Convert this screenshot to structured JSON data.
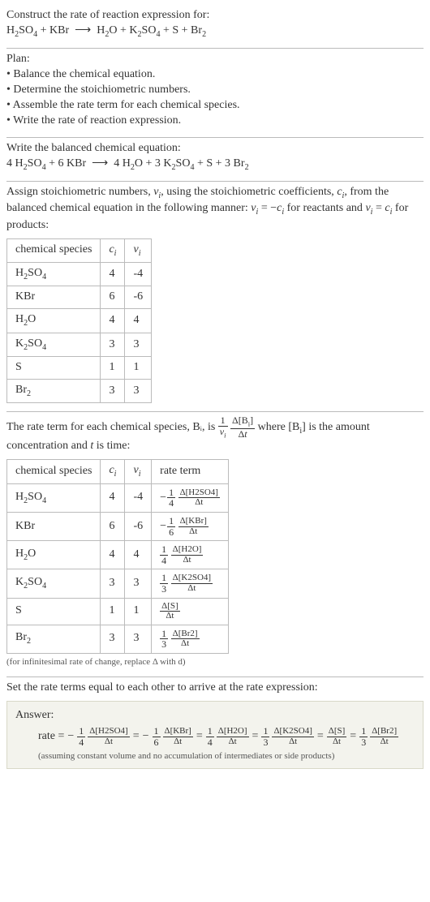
{
  "intro": {
    "line1": "Construct the rate of reaction expression for:",
    "equation": "H₂SO₄ + KBr ⟶ H₂O + K₂SO₄ + S + Br₂"
  },
  "plan": {
    "heading": "Plan:",
    "items": [
      "Balance the chemical equation.",
      "Determine the stoichiometric numbers.",
      "Assemble the rate term for each chemical species.",
      "Write the rate of reaction expression."
    ]
  },
  "balanced": {
    "heading": "Write the balanced chemical equation:",
    "equation": "4 H₂SO₄ + 6 KBr ⟶ 4 H₂O + 3 K₂SO₄ + S + 3 Br₂"
  },
  "assign": {
    "text": "Assign stoichiometric numbers, νᵢ, using the stoichiometric coefficients, cᵢ, from the balanced chemical equation in the following manner: νᵢ = −cᵢ for reactants and νᵢ = cᵢ for products:",
    "table": {
      "headers": [
        "chemical species",
        "cᵢ",
        "νᵢ"
      ],
      "rows": [
        {
          "species": "H₂SO₄",
          "c": "4",
          "v": "-4"
        },
        {
          "species": "KBr",
          "c": "6",
          "v": "-6"
        },
        {
          "species": "H₂O",
          "c": "4",
          "v": "4"
        },
        {
          "species": "K₂SO₄",
          "c": "3",
          "v": "3"
        },
        {
          "species": "S",
          "c": "1",
          "v": "1"
        },
        {
          "species": "Br₂",
          "c": "3",
          "v": "3"
        }
      ]
    }
  },
  "rateterm": {
    "pre": "The rate term for each chemical species, Bᵢ, is ",
    "post": " where [Bᵢ] is the amount concentration and t is time:",
    "coef_num": "1",
    "coef_den": "νᵢ",
    "frac_num": "Δ[Bᵢ]",
    "frac_den": "Δt",
    "table": {
      "headers": [
        "chemical species",
        "cᵢ",
        "νᵢ",
        "rate term"
      ],
      "rows": [
        {
          "species": "H₂SO₄",
          "c": "4",
          "v": "-4",
          "neg": true,
          "coef_num": "1",
          "coef_den": "4",
          "num": "Δ[H2SO4]",
          "den": "Δt"
        },
        {
          "species": "KBr",
          "c": "6",
          "v": "-6",
          "neg": true,
          "coef_num": "1",
          "coef_den": "6",
          "num": "Δ[KBr]",
          "den": "Δt"
        },
        {
          "species": "H₂O",
          "c": "4",
          "v": "4",
          "neg": false,
          "coef_num": "1",
          "coef_den": "4",
          "num": "Δ[H2O]",
          "den": "Δt"
        },
        {
          "species": "K₂SO₄",
          "c": "3",
          "v": "3",
          "neg": false,
          "coef_num": "1",
          "coef_den": "3",
          "num": "Δ[K2SO4]",
          "den": "Δt"
        },
        {
          "species": "S",
          "c": "1",
          "v": "1",
          "neg": false,
          "coef_num": "",
          "coef_den": "",
          "num": "Δ[S]",
          "den": "Δt"
        },
        {
          "species": "Br₂",
          "c": "3",
          "v": "3",
          "neg": false,
          "coef_num": "1",
          "coef_den": "3",
          "num": "Δ[Br2]",
          "den": "Δt"
        }
      ]
    },
    "note": "(for infinitesimal rate of change, replace Δ with d)"
  },
  "final": {
    "heading": "Set the rate terms equal to each other to arrive at the rate expression:"
  },
  "answer": {
    "label": "Answer:",
    "lead": "rate =",
    "terms": [
      {
        "neg": true,
        "coef_num": "1",
        "coef_den": "4",
        "num": "Δ[H2SO4]",
        "den": "Δt"
      },
      {
        "neg": true,
        "coef_num": "1",
        "coef_den": "6",
        "num": "Δ[KBr]",
        "den": "Δt"
      },
      {
        "neg": false,
        "coef_num": "1",
        "coef_den": "4",
        "num": "Δ[H2O]",
        "den": "Δt"
      },
      {
        "neg": false,
        "coef_num": "1",
        "coef_den": "3",
        "num": "Δ[K2SO4]",
        "den": "Δt"
      },
      {
        "neg": false,
        "coef_num": "",
        "coef_den": "",
        "num": "Δ[S]",
        "den": "Δt"
      },
      {
        "neg": false,
        "coef_num": "1",
        "coef_den": "3",
        "num": "Δ[Br2]",
        "den": "Δt"
      }
    ],
    "note": "(assuming constant volume and no accumulation of intermediates or side products)"
  }
}
